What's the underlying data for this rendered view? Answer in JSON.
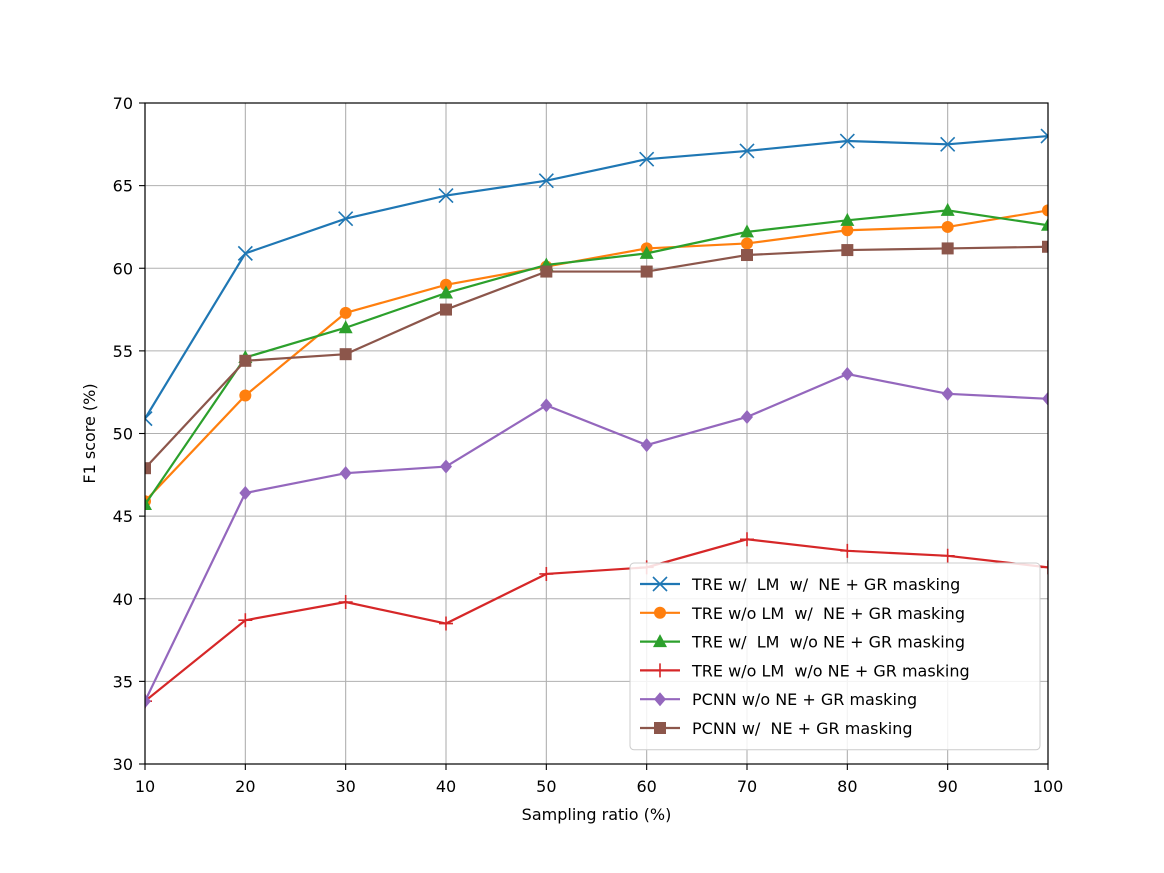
{
  "chart_data": {
    "type": "line",
    "title": "",
    "xlabel": "Sampling ratio (%)",
    "ylabel": "F1 score (%)",
    "xlim": [
      10,
      100
    ],
    "ylim": [
      30,
      70
    ],
    "xticks": [
      10,
      20,
      30,
      40,
      50,
      60,
      70,
      80,
      90,
      100
    ],
    "yticks": [
      30,
      35,
      40,
      45,
      50,
      55,
      60,
      65,
      70
    ],
    "grid": true,
    "legend_position": "lower-right",
    "x": [
      10,
      20,
      30,
      40,
      50,
      60,
      70,
      80,
      90,
      100
    ],
    "series": [
      {
        "name": "TRE w/  LM  w/  NE + GR masking",
        "color": "#1f77b4",
        "marker": "x",
        "values": [
          50.9,
          60.9,
          63.0,
          64.4,
          65.3,
          66.6,
          67.1,
          67.7,
          67.5,
          68.0
        ]
      },
      {
        "name": "TRE w/o LM  w/  NE + GR masking",
        "color": "#ff7f0e",
        "marker": "circle",
        "values": [
          45.9,
          52.3,
          57.3,
          59.0,
          60.1,
          61.2,
          61.5,
          62.3,
          62.5,
          63.5
        ]
      },
      {
        "name": "TRE w/  LM  w/o NE + GR masking",
        "color": "#2ca02c",
        "marker": "triangle",
        "values": [
          45.7,
          54.6,
          56.4,
          58.5,
          60.2,
          60.9,
          62.2,
          62.9,
          63.5,
          62.6
        ]
      },
      {
        "name": "TRE w/o LM  w/o NE + GR masking",
        "color": "#d62728",
        "marker": "plus",
        "values": [
          33.8,
          38.7,
          39.8,
          38.5,
          41.5,
          41.9,
          43.6,
          42.9,
          42.6,
          41.9
        ]
      },
      {
        "name": "PCNN w/o NE + GR masking",
        "color": "#9467bd",
        "marker": "diamond",
        "values": [
          33.8,
          46.4,
          47.6,
          48.0,
          51.7,
          49.3,
          51.0,
          53.6,
          52.4,
          52.1
        ]
      },
      {
        "name": "PCNN w/  NE + GR masking",
        "color": "#8c564b",
        "marker": "square",
        "values": [
          47.9,
          54.4,
          54.8,
          57.5,
          59.8,
          59.8,
          60.8,
          61.1,
          61.2,
          61.3
        ]
      }
    ]
  }
}
